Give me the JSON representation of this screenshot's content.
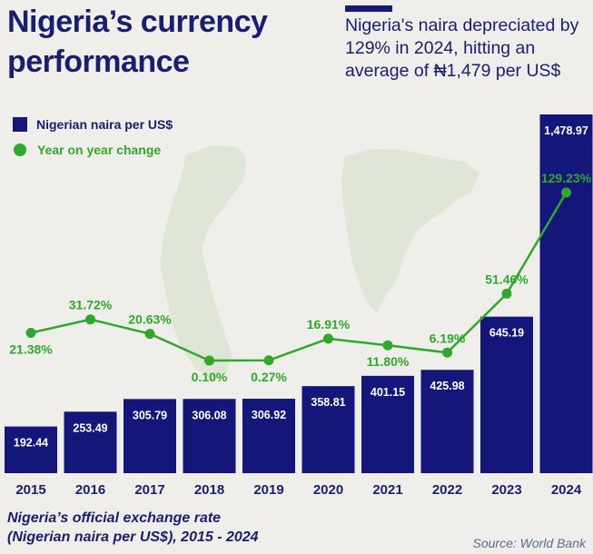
{
  "header": {
    "title": "Nigeria’s currency performance",
    "subtitle": "Nigeria's naira depreciated by 129% in 2024, hitting an average of ₦1,479 per US$"
  },
  "legend": {
    "bar_label": "Nigerian naira per US$",
    "line_label": "Year on year change"
  },
  "footer": {
    "caption_line1": "Nigeria’s official exchange rate",
    "caption_line2": "(Nigerian naira per US$), 2015 - 2024",
    "source": "Source: World Bank"
  },
  "colors": {
    "bar": "#14167a",
    "line": "#2fa82c",
    "background": "#efeeea",
    "map": "#dfe6d8"
  },
  "chart_data": {
    "type": "bar",
    "categories": [
      "2015",
      "2016",
      "2017",
      "2018",
      "2019",
      "2020",
      "2021",
      "2022",
      "2023",
      "2024"
    ],
    "series": [
      {
        "name": "Nigerian naira per US$",
        "type": "bar",
        "values": [
          192.44,
          253.49,
          305.79,
          306.08,
          306.92,
          358.81,
          401.15,
          425.98,
          645.19,
          1478.97
        ],
        "labels": [
          "192.44",
          "253.49",
          "305.79",
          "306.08",
          "306.92",
          "358.81",
          "401.15",
          "425.98",
          "645.19",
          "1,478.97"
        ]
      },
      {
        "name": "Year on year change",
        "type": "line",
        "values": [
          21.38,
          31.72,
          20.63,
          0.1,
          0.27,
          16.91,
          11.8,
          6.19,
          51.46,
          129.23
        ],
        "labels": [
          "21.38%",
          "31.72%",
          "20.63%",
          "0.10%",
          "0.27%",
          "16.91%",
          "11.80%",
          "6.19%",
          "51.46%",
          "129.23%"
        ]
      }
    ],
    "grid": false,
    "legend_position": "top-left"
  }
}
